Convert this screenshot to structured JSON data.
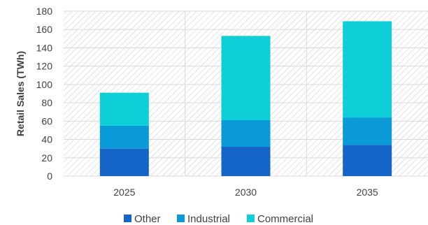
{
  "chart_data": {
    "type": "bar",
    "stacked": true,
    "categories": [
      "2025",
      "2030",
      "2035"
    ],
    "series": [
      {
        "name": "Other",
        "values": [
          30,
          32,
          34
        ],
        "color": "#1565C8"
      },
      {
        "name": "Industrial",
        "values": [
          25,
          29,
          30
        ],
        "color": "#0A9AD8"
      },
      {
        "name": "Commercial",
        "values": [
          36,
          92,
          105
        ],
        "color": "#0ECFD8"
      }
    ],
    "title": "",
    "xlabel": "",
    "ylabel": "Retail Sales (TWh)",
    "ylim": [
      0,
      180
    ],
    "yticks": [
      0,
      20,
      40,
      60,
      80,
      100,
      120,
      140,
      160,
      180
    ],
    "grid": true,
    "legend_position": "bottom"
  }
}
